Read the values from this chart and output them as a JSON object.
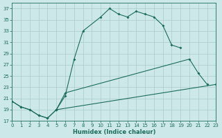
{
  "xlabel": "Humidex (Indice chaleur)",
  "bg_color": "#cde8e8",
  "grid_color": "#aacccc",
  "line_color": "#1a6b5a",
  "xlim": [
    0,
    23
  ],
  "ylim": [
    17,
    38
  ],
  "yticks": [
    17,
    19,
    21,
    23,
    25,
    27,
    29,
    31,
    33,
    35,
    37
  ],
  "xticks": [
    0,
    1,
    2,
    3,
    4,
    5,
    6,
    7,
    8,
    9,
    10,
    11,
    12,
    13,
    14,
    15,
    16,
    17,
    18,
    19,
    20,
    21,
    22,
    23
  ],
  "series1_x": [
    0,
    1,
    2,
    3,
    4,
    5,
    6,
    7,
    8,
    10,
    11,
    12,
    13,
    14,
    15,
    16,
    17,
    18,
    19
  ],
  "series1_y": [
    20.5,
    19.5,
    19.0,
    18.0,
    17.5,
    19.0,
    21.5,
    28.0,
    33.0,
    35.5,
    37.0,
    36.0,
    35.5,
    36.5,
    36.0,
    35.5,
    34.0,
    30.5,
    30.0
  ],
  "series2_x": [
    0,
    1,
    2,
    3,
    4,
    5,
    6,
    20,
    21,
    22
  ],
  "series2_y": [
    20.5,
    19.5,
    19.0,
    18.0,
    17.5,
    19.0,
    22.0,
    28.0,
    25.5,
    23.5
  ],
  "series3_x": [
    5,
    23
  ],
  "series3_y": [
    19.0,
    23.5
  ]
}
